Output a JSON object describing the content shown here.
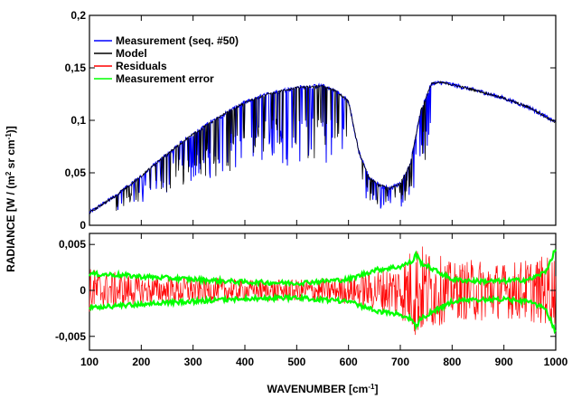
{
  "chart_data": [
    {
      "type": "line",
      "panel": "top",
      "ylim": [
        0,
        0.2
      ],
      "xlim": [
        100,
        1000
      ],
      "yticks": [
        "0",
        "0,05",
        "0,1",
        "0,15",
        "0,2"
      ],
      "ylabel_parts": [
        "RADIANCE [W / (m",
        "2",
        " sr cm",
        "-1",
        ")]"
      ],
      "legend": {
        "placement": "top-left"
      },
      "series": [
        {
          "name": "Measurement (seq. #50)",
          "color": "#0000ff",
          "x": [
            100,
            150,
            200,
            250,
            300,
            350,
            400,
            450,
            500,
            550,
            575,
            600,
            620,
            640,
            660,
            680,
            700,
            720,
            740,
            760,
            780,
            800,
            850,
            900,
            950,
            1000
          ],
          "values": [
            0.012,
            0.028,
            0.047,
            0.068,
            0.087,
            0.103,
            0.117,
            0.126,
            0.131,
            0.133,
            0.128,
            0.118,
            0.07,
            0.045,
            0.038,
            0.035,
            0.04,
            0.06,
            0.11,
            0.135,
            0.136,
            0.134,
            0.128,
            0.121,
            0.112,
            0.098
          ]
        },
        {
          "name": "Model",
          "color": "#000000",
          "x": [
            100,
            150,
            200,
            250,
            300,
            350,
            400,
            450,
            500,
            550,
            575,
            600,
            620,
            640,
            660,
            680,
            700,
            720,
            740,
            760,
            780,
            800,
            850,
            900,
            950,
            1000
          ],
          "values": [
            0.012,
            0.028,
            0.047,
            0.068,
            0.087,
            0.103,
            0.117,
            0.126,
            0.131,
            0.133,
            0.128,
            0.118,
            0.07,
            0.045,
            0.038,
            0.035,
            0.04,
            0.06,
            0.11,
            0.135,
            0.136,
            0.134,
            0.128,
            0.121,
            0.112,
            0.098
          ]
        },
        {
          "name": "Residuals",
          "color": "#ff0000"
        },
        {
          "name": "Measurement error",
          "color": "#00ff00"
        }
      ]
    },
    {
      "type": "line",
      "panel": "bottom",
      "ylim": [
        -0.0065,
        0.0062
      ],
      "xlim": [
        100,
        1000
      ],
      "yticks": [
        "-0,005",
        "0",
        "0,005"
      ],
      "xticks": [
        "100",
        "200",
        "300",
        "400",
        "500",
        "600",
        "700",
        "800",
        "900",
        "1000"
      ],
      "xlabel_parts": [
        "WAVENUMBER [cm",
        "-1",
        "]"
      ],
      "series": [
        {
          "name": "Residuals",
          "color": "#ff0000",
          "x": [
            100,
            200,
            300,
            400,
            500,
            600,
            700,
            730,
            800,
            850,
            900,
            950,
            1000
          ],
          "amplitude": [
            0.0025,
            0.0015,
            0.0015,
            0.0012,
            0.0012,
            0.0015,
            0.003,
            0.0055,
            0.003,
            0.0035,
            0.003,
            0.0035,
            0.004
          ]
        },
        {
          "name": "Measurement error",
          "color": "#00ff00",
          "x": [
            100,
            150,
            200,
            300,
            400,
            500,
            600,
            650,
            700,
            725,
            730,
            740,
            800,
            850,
            900,
            950,
            980,
            1000
          ],
          "values": [
            0.0018,
            0.0017,
            0.0015,
            0.0012,
            0.0009,
            0.0008,
            0.0012,
            0.0022,
            0.0026,
            0.0032,
            0.004,
            0.003,
            0.0012,
            0.001,
            0.001,
            0.0012,
            0.002,
            0.0045
          ]
        }
      ]
    }
  ]
}
